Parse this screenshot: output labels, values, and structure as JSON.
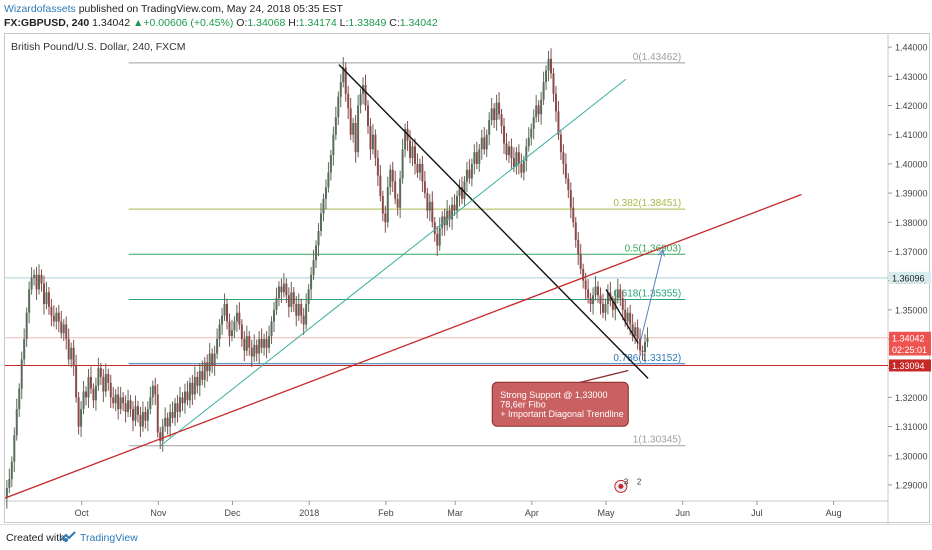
{
  "header": {
    "author": "Wizardofassets",
    "published": "published on TradingView.com, May 24, 2018 05:35 EST",
    "symbol": "FX:GBPUSD, 240",
    "price": "1.34042",
    "change": "+0.00606 (+0.45%)",
    "ohlc_o_label": "O:",
    "ohlc_o": "1.34068",
    "ohlc_h_label": "H:",
    "ohlc_h": "1.34174",
    "ohlc_l_label": "L:",
    "ohlc_l": "1.33849",
    "ohlc_c_label": "C:",
    "ohlc_c": "1.34042"
  },
  "footer": {
    "created_label": "Created with",
    "brand": "TradingView"
  },
  "chart_data": {
    "type": "candlestick",
    "title": "British Pound/U.S. Dollar, 240, FXCM",
    "ylim": [
      1.2845,
      1.4445
    ],
    "y_ticks": [
      "1.29000",
      "1.30000",
      "1.31000",
      "1.32000",
      "1.33000",
      "1.34000",
      "1.35000",
      "1.36000",
      "1.37000",
      "1.38000",
      "1.39000",
      "1.40000",
      "1.41000",
      "1.42000",
      "1.43000",
      "1.44000"
    ],
    "x_ticks": [
      "Oct",
      "Nov",
      "Dec",
      "2018",
      "Feb",
      "Mar",
      "Apr",
      "May",
      "Jun",
      "Jul",
      "Aug"
    ],
    "x_tick_days": [
      31,
      62,
      92,
      123,
      154,
      182,
      213,
      243,
      274,
      304,
      335
    ],
    "xlim_days": [
      0,
      357
    ],
    "close_path": [
      [
        0,
        1.2855
      ],
      [
        1,
        1.289
      ],
      [
        2,
        1.292
      ],
      [
        3,
        1.298
      ],
      [
        4,
        1.307
      ],
      [
        5,
        1.316
      ],
      [
        6,
        1.323
      ],
      [
        7,
        1.333
      ],
      [
        8,
        1.34
      ],
      [
        9,
        1.349
      ],
      [
        10,
        1.357
      ],
      [
        11,
        1.361
      ],
      [
        12,
        1.362
      ],
      [
        13,
        1.357
      ],
      [
        14,
        1.362
      ],
      [
        15,
        1.359
      ],
      [
        16,
        1.352
      ],
      [
        17,
        1.356
      ],
      [
        18,
        1.351
      ],
      [
        19,
        1.348
      ],
      [
        20,
        1.346
      ],
      [
        21,
        1.349
      ],
      [
        22,
        1.346
      ],
      [
        23,
        1.342
      ],
      [
        24,
        1.345
      ],
      [
        25,
        1.34
      ],
      [
        26,
        1.333
      ],
      [
        27,
        1.337
      ],
      [
        28,
        1.331
      ],
      [
        29,
        1.32
      ],
      [
        30,
        1.31
      ],
      [
        31,
        1.316
      ],
      [
        32,
        1.322
      ],
      [
        33,
        1.32
      ],
      [
        34,
        1.327
      ],
      [
        35,
        1.323
      ],
      [
        36,
        1.319
      ],
      [
        37,
        1.324
      ],
      [
        38,
        1.33
      ],
      [
        39,
        1.327
      ],
      [
        40,
        1.322
      ],
      [
        41,
        1.328
      ],
      [
        42,
        1.325
      ],
      [
        43,
        1.32
      ],
      [
        44,
        1.318
      ],
      [
        45,
        1.321
      ],
      [
        46,
        1.316
      ],
      [
        47,
        1.32
      ],
      [
        48,
        1.318
      ],
      [
        49,
        1.315
      ],
      [
        50,
        1.319
      ],
      [
        51,
        1.316
      ],
      [
        52,
        1.312
      ],
      [
        53,
        1.317
      ],
      [
        54,
        1.314
      ],
      [
        55,
        1.31
      ],
      [
        56,
        1.315
      ],
      [
        57,
        1.312
      ],
      [
        58,
        1.316
      ],
      [
        59,
        1.32
      ],
      [
        60,
        1.324
      ],
      [
        61,
        1.321
      ],
      [
        62,
        1.308
      ],
      [
        63,
        1.305
      ],
      [
        64,
        1.31
      ],
      [
        65,
        1.313
      ],
      [
        66,
        1.31
      ],
      [
        67,
        1.315
      ],
      [
        68,
        1.313
      ],
      [
        69,
        1.318
      ],
      [
        70,
        1.315
      ],
      [
        71,
        1.32
      ],
      [
        72,
        1.318
      ],
      [
        73,
        1.322
      ],
      [
        74,
        1.319
      ],
      [
        75,
        1.325
      ],
      [
        76,
        1.321
      ],
      [
        77,
        1.327
      ],
      [
        78,
        1.324
      ],
      [
        79,
        1.329
      ],
      [
        80,
        1.326
      ],
      [
        81,
        1.332
      ],
      [
        82,
        1.329
      ],
      [
        83,
        1.335
      ],
      [
        84,
        1.331
      ],
      [
        85,
        1.335
      ],
      [
        86,
        1.34
      ],
      [
        87,
        1.345
      ],
      [
        88,
        1.348
      ],
      [
        89,
        1.352
      ],
      [
        90,
        1.346
      ],
      [
        91,
        1.341
      ],
      [
        92,
        1.343
      ],
      [
        93,
        1.346
      ],
      [
        94,
        1.349
      ],
      [
        95,
        1.345
      ],
      [
        96,
        1.34
      ],
      [
        97,
        1.336
      ],
      [
        98,
        1.341
      ],
      [
        99,
        1.337
      ],
      [
        100,
        1.334
      ],
      [
        101,
        1.338
      ],
      [
        102,
        1.335
      ],
      [
        103,
        1.34
      ],
      [
        104,
        1.337
      ],
      [
        105,
        1.34
      ],
      [
        106,
        1.337
      ],
      [
        107,
        1.341
      ],
      [
        108,
        1.346
      ],
      [
        109,
        1.35
      ],
      [
        110,
        1.354
      ],
      [
        111,
        1.358
      ],
      [
        112,
        1.356
      ],
      [
        113,
        1.359
      ],
      [
        114,
        1.355
      ],
      [
        115,
        1.351
      ],
      [
        116,
        1.356
      ],
      [
        117,
        1.352
      ],
      [
        118,
        1.348
      ],
      [
        119,
        1.352
      ],
      [
        120,
        1.348
      ],
      [
        121,
        1.345
      ],
      [
        122,
        1.352
      ],
      [
        123,
        1.357
      ],
      [
        124,
        1.362
      ],
      [
        125,
        1.367
      ],
      [
        126,
        1.372
      ],
      [
        127,
        1.377
      ],
      [
        128,
        1.383
      ],
      [
        129,
        1.388
      ],
      [
        130,
        1.392
      ],
      [
        131,
        1.397
      ],
      [
        132,
        1.403
      ],
      [
        133,
        1.41
      ],
      [
        134,
        1.416
      ],
      [
        135,
        1.423
      ],
      [
        136,
        1.428
      ],
      [
        137,
        1.433
      ],
      [
        138,
        1.424
      ],
      [
        139,
        1.419
      ],
      [
        140,
        1.41
      ],
      [
        141,
        1.414
      ],
      [
        142,
        1.404
      ],
      [
        143,
        1.42
      ],
      [
        144,
        1.424
      ],
      [
        145,
        1.427
      ],
      [
        146,
        1.42
      ],
      [
        147,
        1.413
      ],
      [
        148,
        1.405
      ],
      [
        149,
        1.41
      ],
      [
        150,
        1.402
      ],
      [
        151,
        1.396
      ],
      [
        152,
        1.389
      ],
      [
        153,
        1.383
      ],
      [
        154,
        1.38
      ],
      [
        155,
        1.392
      ],
      [
        156,
        1.398
      ],
      [
        157,
        1.394
      ],
      [
        158,
        1.388
      ],
      [
        159,
        1.385
      ],
      [
        160,
        1.395
      ],
      [
        161,
        1.405
      ],
      [
        162,
        1.412
      ],
      [
        163,
        1.408
      ],
      [
        164,
        1.402
      ],
      [
        165,
        1.406
      ],
      [
        166,
        1.4
      ],
      [
        167,
        1.397
      ],
      [
        168,
        1.4
      ],
      [
        169,
        1.394
      ],
      [
        170,
        1.39
      ],
      [
        171,
        1.384
      ],
      [
        172,
        1.387
      ],
      [
        173,
        1.38
      ],
      [
        174,
        1.376
      ],
      [
        175,
        1.372
      ],
      [
        176,
        1.378
      ],
      [
        177,
        1.382
      ],
      [
        178,
        1.379
      ],
      [
        179,
        1.384
      ],
      [
        180,
        1.381
      ],
      [
        181,
        1.386
      ],
      [
        182,
        1.384
      ],
      [
        183,
        1.389
      ],
      [
        184,
        1.392
      ],
      [
        185,
        1.388
      ],
      [
        186,
        1.394
      ],
      [
        187,
        1.398
      ],
      [
        188,
        1.395
      ],
      [
        189,
        1.4
      ],
      [
        190,
        1.404
      ],
      [
        191,
        1.4
      ],
      [
        192,
        1.405
      ],
      [
        193,
        1.409
      ],
      [
        194,
        1.405
      ],
      [
        195,
        1.41
      ],
      [
        196,
        1.415
      ],
      [
        197,
        1.419
      ],
      [
        198,
        1.415
      ],
      [
        199,
        1.421
      ],
      [
        200,
        1.417
      ],
      [
        201,
        1.413
      ],
      [
        202,
        1.407
      ],
      [
        203,
        1.403
      ],
      [
        204,
        1.406
      ],
      [
        205,
        1.402
      ],
      [
        206,
        1.399
      ],
      [
        207,
        1.404
      ],
      [
        208,
        1.4
      ],
      [
        209,
        1.397
      ],
      [
        210,
        1.401
      ],
      [
        211,
        1.406
      ],
      [
        212,
        1.409
      ],
      [
        213,
        1.412
      ],
      [
        214,
        1.416
      ],
      [
        215,
        1.42
      ],
      [
        216,
        1.417
      ],
      [
        217,
        1.422
      ],
      [
        218,
        1.428
      ],
      [
        219,
        1.432
      ],
      [
        220,
        1.436
      ],
      [
        221,
        1.431
      ],
      [
        222,
        1.424
      ],
      [
        223,
        1.418
      ],
      [
        224,
        1.41
      ],
      [
        225,
        1.404
      ],
      [
        226,
        1.4
      ],
      [
        227,
        1.395
      ],
      [
        228,
        1.391
      ],
      [
        229,
        1.385
      ],
      [
        230,
        1.38
      ],
      [
        231,
        1.374
      ],
      [
        232,
        1.369
      ],
      [
        233,
        1.364
      ],
      [
        234,
        1.36
      ],
      [
        235,
        1.357
      ],
      [
        236,
        1.354
      ],
      [
        237,
        1.352
      ],
      [
        238,
        1.355
      ],
      [
        239,
        1.358
      ],
      [
        240,
        1.355
      ],
      [
        241,
        1.352
      ],
      [
        242,
        1.349
      ],
      [
        243,
        1.352
      ],
      [
        244,
        1.356
      ],
      [
        245,
        1.353
      ],
      [
        246,
        1.35
      ],
      [
        247,
        1.354
      ],
      [
        248,
        1.357
      ],
      [
        249,
        1.354
      ],
      [
        250,
        1.35
      ],
      [
        251,
        1.346
      ],
      [
        252,
        1.349
      ],
      [
        253,
        1.345
      ],
      [
        254,
        1.341
      ],
      [
        255,
        1.344
      ],
      [
        256,
        1.34
      ],
      [
        257,
        1.336
      ],
      [
        258,
        1.3355
      ],
      [
        259,
        1.339
      ],
      [
        260,
        1.3404
      ]
    ],
    "fibonacci": [
      {
        "label": "0(1.43462)",
        "value": 1.43462,
        "color": "#9e9e9e"
      },
      {
        "label": "0.382(1.38451)",
        "value": 1.38451,
        "color": "#a9b94a"
      },
      {
        "label": "0.5(1.36903)",
        "value": 1.36903,
        "color": "#3aa85a"
      },
      {
        "label": "0.618(1.35355)",
        "value": 1.35355,
        "color": "#2aa57a"
      },
      {
        "label": "0.786(1.33152)",
        "value": 1.33152,
        "color": "#2a7ab8"
      },
      {
        "label": "1(1.30345)",
        "value": 1.30345,
        "color": "#9e9e9e"
      }
    ],
    "fib_day_start": 50,
    "fib_day_end": 275,
    "horizontal_lines": [
      {
        "value": 1.36096,
        "color": "#a7d0d6"
      },
      {
        "value": 1.34042,
        "color": "#f2b8b8"
      },
      {
        "value": 1.33094,
        "color": "#c62828"
      }
    ],
    "price_labels": [
      {
        "text": "1.36096",
        "value": 1.36096,
        "bg": "#d8ecef",
        "fg": "#222222"
      },
      {
        "text": "1.34042",
        "value": 1.34042,
        "bg": "#ef5350",
        "fg": "#ffffff"
      },
      {
        "text": "02:25:01",
        "value": 1.3364,
        "bg": "#ef5350",
        "fg": "#ffffff"
      },
      {
        "text": "1.33094",
        "value": 1.33094,
        "bg": "#c62828",
        "fg": "#ffffff"
      }
    ],
    "trendlines": [
      {
        "name": "black-downtrend",
        "from": [
          135,
          1.434
        ],
        "to": [
          260,
          1.3265
        ],
        "color": "#111111",
        "width": 1.4
      },
      {
        "name": "teal-uptrend",
        "from": [
          63,
          1.3035
        ],
        "to": [
          251,
          1.429
        ],
        "color": "#3ab0a0",
        "width": 1
      },
      {
        "name": "red-diagonal",
        "from": [
          0,
          1.2855
        ],
        "to": [
          322,
          1.3895
        ],
        "color": "#c62828",
        "width": 1.3
      },
      {
        "name": "black-short",
        "from": [
          243,
          1.357
        ],
        "to": [
          256,
          1.3385
        ],
        "color": "#111111",
        "width": 1.3
      },
      {
        "name": "maroon-pointer",
        "from": [
          228,
          1.3242
        ],
        "to": [
          252,
          1.3292
        ],
        "color": "#8b2a2a",
        "width": 1.3
      }
    ],
    "arrow": {
      "from": [
        257,
        1.3395
      ],
      "to": [
        266,
        1.3706
      ],
      "color": "#5b7fc6"
    },
    "annotation": {
      "lines": [
        "Strong Support @ 1,33000",
        "78,6er Fibo",
        "+ Important Diagonal Trendline"
      ],
      "day": 197,
      "value_top": 1.3252,
      "day_end": 252,
      "value_bottom": 1.3101,
      "bg": "#c96062",
      "border": "#8b2a2a"
    },
    "events_badge": {
      "day": 249,
      "value": 1.2895,
      "text_a": "3",
      "text_b": "2"
    }
  }
}
